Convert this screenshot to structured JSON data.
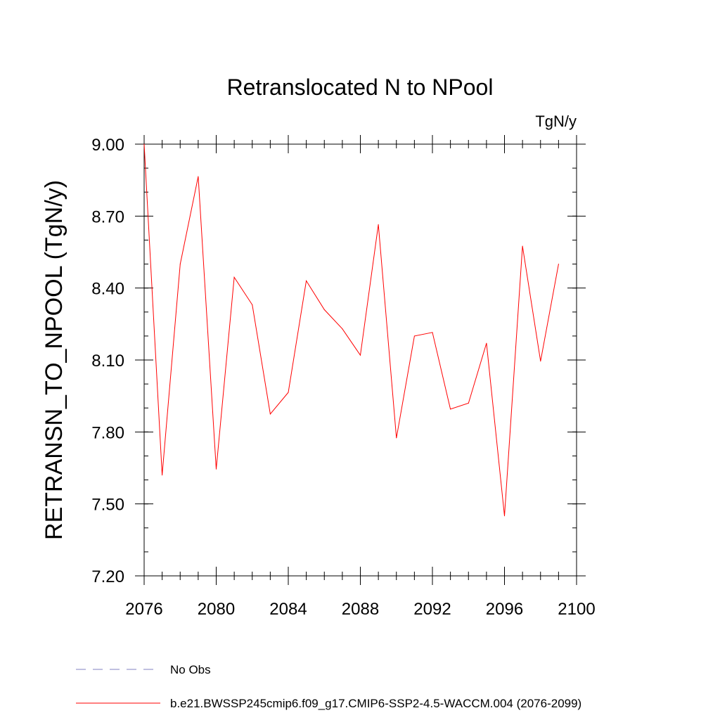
{
  "chart_data": {
    "type": "line",
    "title": "Retranslocated N to NPool",
    "units": "TgN/y",
    "ylabel": "RETRANSN_TO_NPOOL  (TgN/y)",
    "xlabel": "",
    "xlim": [
      2076,
      2100
    ],
    "ylim": [
      7.2,
      9.0
    ],
    "x_ticks": [
      2076,
      2080,
      2084,
      2088,
      2092,
      2096,
      2100
    ],
    "x_tick_labels": [
      "2076",
      "2080",
      "2084",
      "2088",
      "2092",
      "2096",
      "2100"
    ],
    "y_ticks": [
      7.2,
      7.5,
      7.8,
      8.1,
      8.4,
      8.7,
      9.0
    ],
    "y_tick_labels": [
      "7.20",
      "7.50",
      "7.80",
      "8.10",
      "8.40",
      "8.70",
      "9.00"
    ],
    "grid": false,
    "legend_position": "bottom",
    "series": [
      {
        "name": "No Obs",
        "color": "#8080c0",
        "dash": "dashed",
        "x": [],
        "values": []
      },
      {
        "name": "b.e21.BWSSP245cmip6.f09_g17.CMIP6-SSP2-4.5-WACCM.004 (2076-2099)",
        "color": "#ff0000",
        "dash": "solid",
        "x": [
          2076,
          2077,
          2078,
          2079,
          2080,
          2081,
          2082,
          2083,
          2084,
          2085,
          2086,
          2087,
          2088,
          2089,
          2090,
          2091,
          2092,
          2093,
          2094,
          2095,
          2096,
          2097,
          2098,
          2099
        ],
        "values": [
          9.0,
          7.62,
          8.5,
          8.865,
          7.645,
          8.445,
          8.33,
          7.875,
          7.965,
          8.43,
          8.31,
          8.23,
          8.12,
          8.665,
          7.775,
          8.2,
          8.215,
          7.895,
          7.92,
          8.17,
          7.45,
          8.575,
          8.095,
          8.5
        ]
      }
    ]
  }
}
